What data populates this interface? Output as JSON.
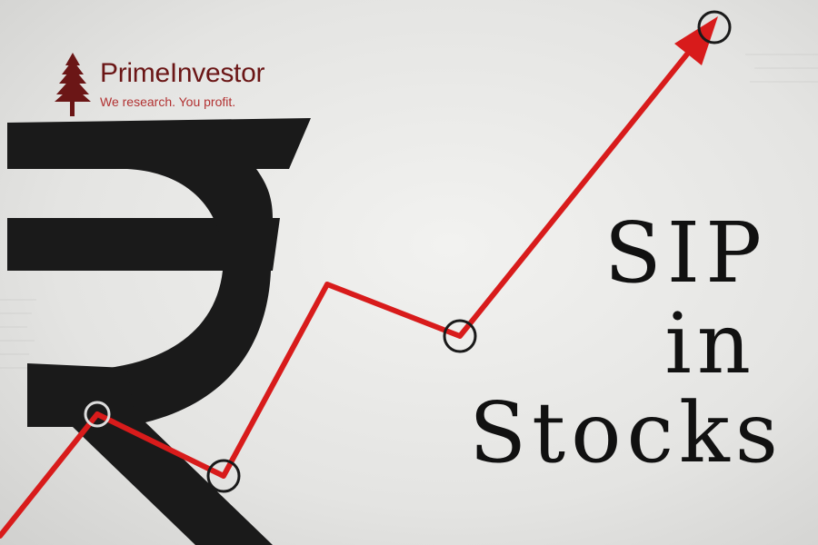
{
  "brand": {
    "name": "PrimeInvestor",
    "tagline": "We research.  You profit."
  },
  "title": {
    "line1": "SIP",
    "line2": "in",
    "line3": "Stocks"
  },
  "colors": {
    "trend_line": "#d81b1b",
    "brand_name": "#6b1616",
    "tagline": "#b23232",
    "rupee": "#1a1a1a",
    "background": "#e9e9e7"
  },
  "icons": [
    "tree-icon",
    "rupee-symbol",
    "arrow-head-icon"
  ]
}
